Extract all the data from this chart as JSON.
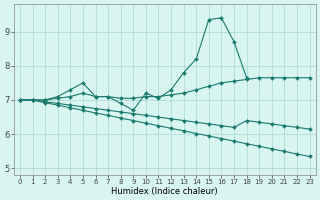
{
  "xlabel": "Humidex (Indice chaleur)",
  "bg_color": "#d8f5f0",
  "grid_color": "#b0ddd8",
  "line_color": "#1a7a6e",
  "xlim": [
    -0.5,
    23.5
  ],
  "ylim": [
    4.8,
    9.8
  ],
  "yticks": [
    5,
    6,
    7,
    8,
    9
  ],
  "xticks": [
    0,
    1,
    2,
    3,
    4,
    5,
    6,
    7,
    8,
    9,
    10,
    11,
    12,
    13,
    14,
    15,
    16,
    17,
    18,
    19,
    20,
    21,
    22,
    23
  ],
  "lines": [
    {
      "x": [
        0,
        1,
        2,
        3,
        4,
        5,
        6,
        7,
        8,
        9,
        10,
        11,
        12,
        13,
        14,
        15,
        16,
        17,
        18
      ],
      "y": [
        7.0,
        7.0,
        7.0,
        7.1,
        7.3,
        7.5,
        7.1,
        7.1,
        6.9,
        6.7,
        7.2,
        7.05,
        7.3,
        7.8,
        8.2,
        9.35,
        9.4,
        8.7,
        7.65
      ]
    },
    {
      "x": [
        0,
        1,
        2,
        3,
        4,
        5,
        6,
        7,
        8,
        9,
        10,
        11,
        12,
        13,
        14,
        15,
        16,
        17,
        18,
        19,
        20,
        21,
        22,
        23
      ],
      "y": [
        7.0,
        7.0,
        7.0,
        7.05,
        7.1,
        7.2,
        7.1,
        7.1,
        7.05,
        7.05,
        7.1,
        7.1,
        7.15,
        7.2,
        7.3,
        7.4,
        7.5,
        7.55,
        7.6,
        7.65,
        7.65,
        7.65,
        7.65,
        7.65
      ]
    },
    {
      "x": [
        0,
        1,
        2,
        3,
        4,
        5,
        6,
        7,
        8,
        9,
        10,
        11,
        12,
        13,
        14,
        15,
        16,
        17,
        18,
        19,
        20,
        21,
        22,
        23
      ],
      "y": [
        7.0,
        7.0,
        6.95,
        6.9,
        6.85,
        6.8,
        6.75,
        6.7,
        6.65,
        6.6,
        6.55,
        6.5,
        6.45,
        6.4,
        6.35,
        6.3,
        6.25,
        6.2,
        6.4,
        6.35,
        6.3,
        6.25,
        6.2,
        6.15
      ]
    },
    {
      "x": [
        0,
        1,
        2,
        3,
        4,
        5,
        6,
        7,
        8,
        9,
        10,
        11,
        12,
        13,
        14,
        15,
        16,
        17,
        18,
        19,
        20,
        21,
        22,
        23
      ],
      "y": [
        7.0,
        7.0,
        6.92,
        6.85,
        6.77,
        6.7,
        6.62,
        6.55,
        6.47,
        6.4,
        6.32,
        6.25,
        6.17,
        6.1,
        6.02,
        5.95,
        5.87,
        5.8,
        5.72,
        5.65,
        5.57,
        5.5,
        5.42,
        5.35
      ]
    }
  ]
}
